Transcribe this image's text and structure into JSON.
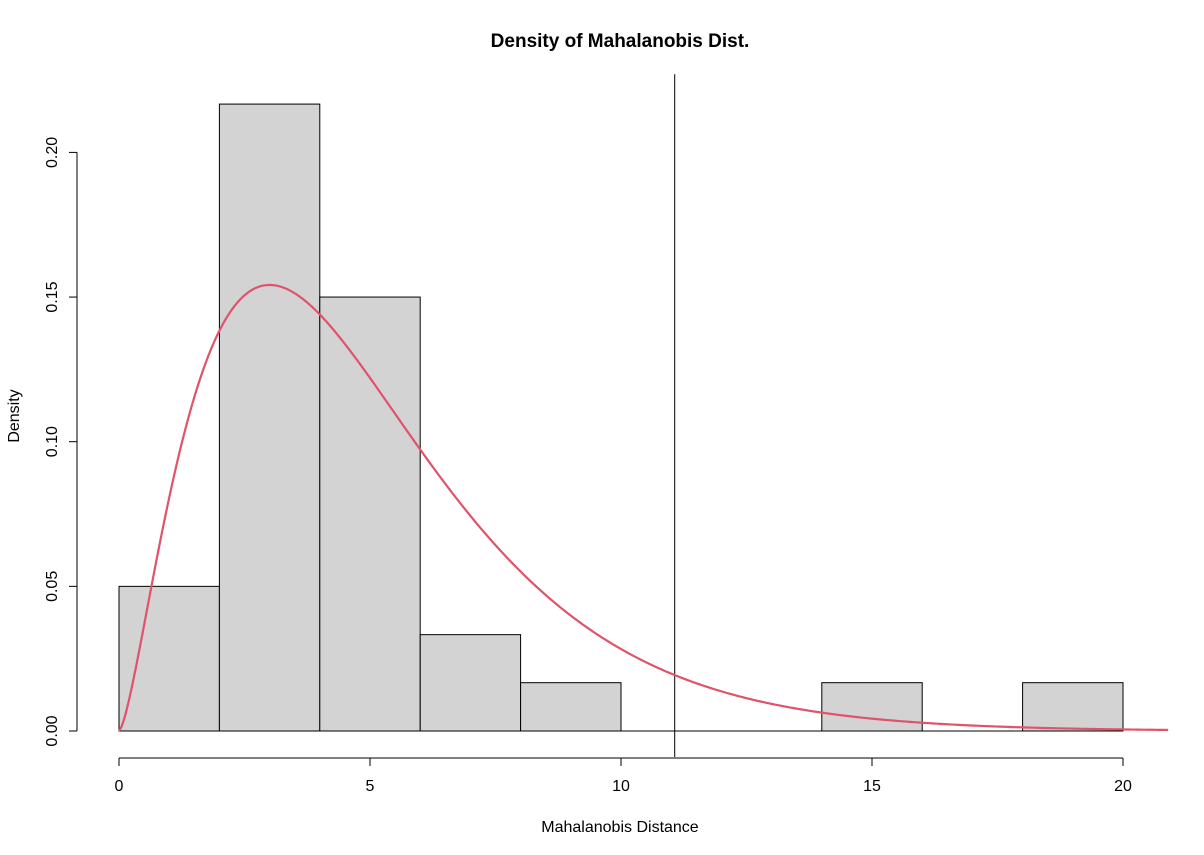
{
  "chart_data": {
    "type": "bar",
    "title": "Density of Mahalanobis Dist.",
    "xlabel": "Mahalanobis Distance",
    "ylabel": "Density",
    "xlim": [
      0,
      20.9
    ],
    "ylim": [
      0,
      0.227
    ],
    "x_ticks": [
      "0",
      "5",
      "10",
      "15",
      "20"
    ],
    "y_ticks": [
      "0.00",
      "0.05",
      "0.10",
      "0.15",
      "0.20"
    ],
    "bins": [
      {
        "from": 0,
        "to": 2,
        "density": 0.05
      },
      {
        "from": 2,
        "to": 4,
        "density": 0.2167
      },
      {
        "from": 4,
        "to": 6,
        "density": 0.15
      },
      {
        "from": 6,
        "to": 8,
        "density": 0.0333
      },
      {
        "from": 8,
        "to": 10,
        "density": 0.0167
      },
      {
        "from": 10,
        "to": 12,
        "density": 0
      },
      {
        "from": 12,
        "to": 14,
        "density": 0
      },
      {
        "from": 14,
        "to": 16,
        "density": 0.0167
      },
      {
        "from": 16,
        "to": 18,
        "density": 0
      },
      {
        "from": 18,
        "to": 20,
        "density": 0.0167
      }
    ],
    "density_curve": {
      "distribution": "chi-squared",
      "df": 5,
      "color": "#DF536B"
    },
    "vline": {
      "x": 11.07,
      "color": "#000000"
    },
    "bar_fill": "#D3D3D3",
    "bar_stroke": "#000000",
    "grid": false
  }
}
